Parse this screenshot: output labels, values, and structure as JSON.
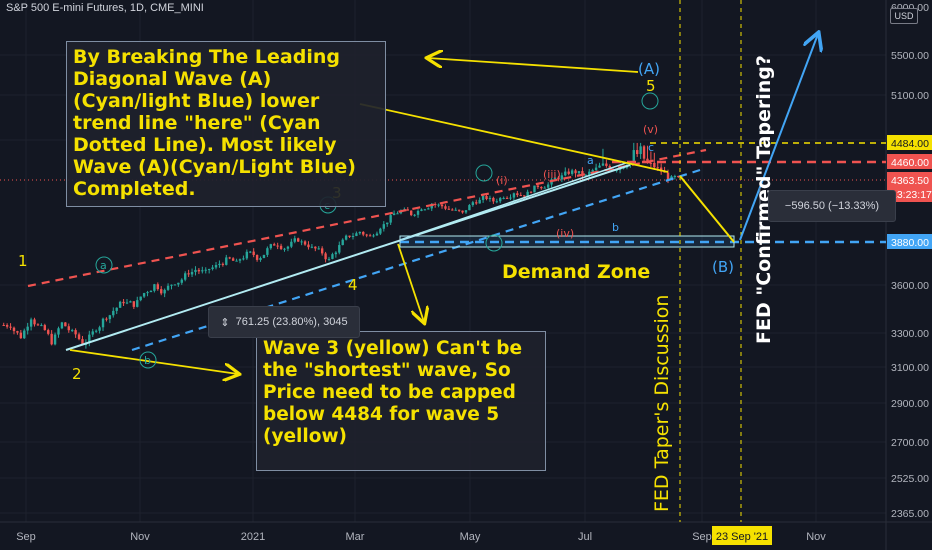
{
  "header": {
    "title": "S&P 500 E-mini Futures, 1D, CME_MINI"
  },
  "currency": "USD",
  "colors": {
    "background": "#131722",
    "up": "#26a69a",
    "down": "#ef5350",
    "yellow": "#f5e100",
    "cyan": "#b2ebf2",
    "blue": "#42a5f5",
    "red": "#ef5350"
  },
  "chart_data": {
    "type": "candlestick",
    "y_axis": {
      "ticks": [
        6000,
        5500,
        5100,
        4800,
        3600,
        3300,
        3100,
        2900,
        2700,
        2525,
        2365
      ],
      "tick_labels": [
        "6000.00",
        "5500.00",
        "5100.00",
        "4800.00",
        "3600.00",
        "3300.00",
        "3100.00",
        "2900.00",
        "2700.00",
        "2525.00",
        "2365.00"
      ]
    },
    "x_axis": {
      "labels": [
        "Sep",
        "Nov",
        "2021",
        "Mar",
        "May",
        "Jul",
        "Sep",
        "Nov"
      ],
      "range": [
        "2020-09",
        "2021-12"
      ]
    },
    "price_labels": [
      {
        "value": 4484,
        "text": "4484.00",
        "color": "#f5e100",
        "text_color": "#131722"
      },
      {
        "value": 4460,
        "text": "4460.00",
        "color": "#ef5350",
        "text_color": "#ffffff"
      },
      {
        "value": 4363.5,
        "text": "4363.50",
        "sub": "13:23:17",
        "color": "#ef5350",
        "text_color": "#ffffff"
      },
      {
        "value": 3880,
        "text": "3880.00",
        "color": "#42a5f5",
        "text_color": "#ffffff"
      }
    ],
    "date_label": "23 Sep '21",
    "series_close_approx": [
      3350,
      3280,
      3400,
      3330,
      3250,
      3360,
      3300,
      3240,
      3300,
      3380,
      3440,
      3500,
      3480,
      3550,
      3600,
      3560,
      3620,
      3660,
      3700,
      3680,
      3720,
      3760,
      3740,
      3800,
      3780,
      3830,
      3870,
      3850,
      3900,
      3860,
      3820,
      3760,
      3850,
      3930,
      3960,
      3920,
      4000,
      4070,
      4120,
      4100,
      4150,
      4180,
      4160,
      4130,
      4100,
      4190,
      4220,
      4200,
      4240,
      4270,
      4250,
      4300,
      4320,
      4370,
      4390,
      4410,
      4380,
      4420,
      4440,
      4430,
      4460,
      4470,
      4450,
      4420,
      4380,
      4363.5
    ],
    "wave_labels": [
      {
        "text": "1",
        "color": "#f5e100"
      },
      {
        "text": "2",
        "color": "#f5e100"
      },
      {
        "text": "3",
        "color": "#f5e100"
      },
      {
        "text": "4",
        "color": "#f5e100"
      },
      {
        "text": "5",
        "color": "#f5e100"
      },
      {
        "text": "(A)",
        "color": "#42a5f5"
      },
      {
        "text": "(B)",
        "color": "#42a5f5"
      },
      {
        "text": "a",
        "color": "#26a69a"
      },
      {
        "text": "b",
        "color": "#26a69a"
      },
      {
        "text": "c",
        "color": "#26a69a"
      },
      {
        "text": "(i)",
        "color": "#ef5350"
      },
      {
        "text": "(iii)",
        "color": "#ef5350"
      },
      {
        "text": "(iv)",
        "color": "#ef5350"
      },
      {
        "text": "(v)",
        "color": "#ef5350"
      },
      {
        "text": "a",
        "color": "#42a5f5"
      },
      {
        "text": "b",
        "color": "#42a5f5"
      },
      {
        "text": "c",
        "color": "#42a5f5"
      }
    ],
    "annotations": {
      "note1": "By Breaking  The Leading Diagonal Wave (A) (Cyan/light Blue) lower trend line \"here\" (Cyan Dotted Line). Most likely Wave (A)(Cyan/Light Blue) Completed.",
      "note2": "Wave 3 (yellow) Can't be the \"shortest\" wave, So Price need to be capped below 4484 for wave 5 (yellow)",
      "demand_zone": "Demand Zone",
      "fed_discussion": "FED Taper's Discussion",
      "fed_confirmed": "FED \"Confirmed\" Tapering?",
      "measure_up": "761.25 (23.80%), 3045",
      "measure_down": "−596.50 (−13.33%)"
    }
  }
}
